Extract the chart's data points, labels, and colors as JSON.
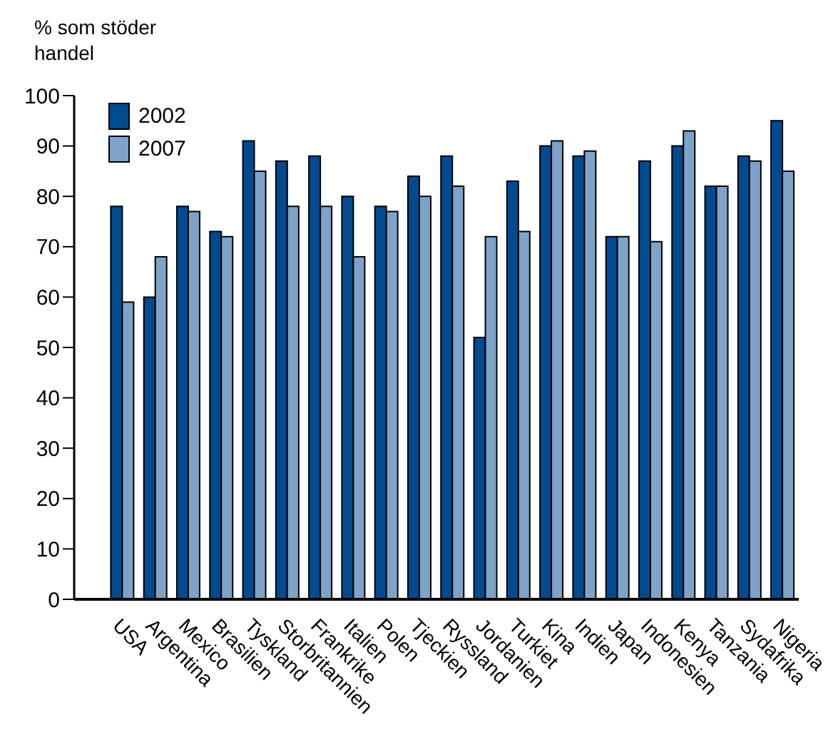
{
  "chart_data": {
    "type": "bar",
    "ylabel": "% som stöder handel",
    "categories": [
      "USA",
      "Argentina",
      "Mexico",
      "Brasilien",
      "Tyskland",
      "Storbritannien",
      "Frankrike",
      "Italien",
      "Polen",
      "Tjeckien",
      "Ryssland",
      "Jordanien",
      "Turkiet",
      "Kina",
      "Indien",
      "Japan",
      "Indonesien",
      "Kenya",
      "Tanzania",
      "Sydafrika",
      "Nigeria"
    ],
    "series": [
      {
        "name": "2002",
        "color": "#004a8f",
        "values": [
          78,
          60,
          78,
          73,
          91,
          87,
          88,
          80,
          78,
          84,
          88,
          52,
          83,
          90,
          88,
          72,
          87,
          90,
          82,
          88,
          95
        ]
      },
      {
        "name": "2007",
        "color": "#7fa3c8",
        "values": [
          59,
          68,
          77,
          72,
          85,
          78,
          78,
          68,
          77,
          80,
          82,
          72,
          73,
          91,
          89,
          72,
          71,
          93,
          82,
          87,
          85
        ]
      }
    ],
    "ylim": [
      0,
      100
    ],
    "yticks": [
      0,
      10,
      20,
      30,
      40,
      50,
      60,
      70,
      80,
      90,
      100
    ],
    "grid": false,
    "legend": "top left"
  }
}
